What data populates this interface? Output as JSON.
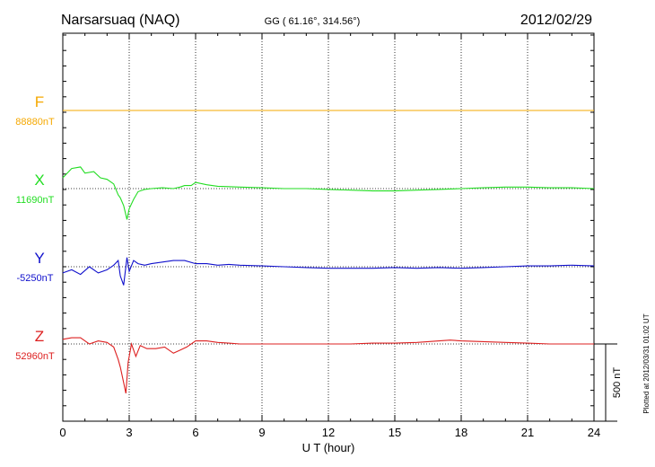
{
  "header": {
    "station": "Narsarsuaq (NAQ)",
    "coords": "GG ( 61.16°, 314.56°)",
    "date": "2012/02/29"
  },
  "footer": {
    "plotted": "Plotted at 2012/03/31 01:02 UT"
  },
  "scale_bar": {
    "label": "500 nT",
    "value_nT": 500
  },
  "chart_data": {
    "type": "line",
    "title": "Narsarsuaq (NAQ)",
    "xlabel": "U T (hour)",
    "ylabel": "",
    "xlim": [
      0,
      24
    ],
    "x_ticks": [
      0,
      3,
      6,
      9,
      12,
      15,
      18,
      21,
      24
    ],
    "x_tick_labels": [
      "0",
      "3",
      "6",
      "9",
      "12",
      "15",
      "18",
      "21",
      "24"
    ],
    "x_grid": "dotted at every 3 hours",
    "component_spacing_nT": 500,
    "series": [
      {
        "name": "F",
        "base_label": "88880nT",
        "base_nT": 88880,
        "color": "#f5a800",
        "x": [
          0,
          24
        ],
        "dev_nT": [
          0,
          0
        ]
      },
      {
        "name": "X",
        "base_label": "11690nT",
        "base_nT": 11690,
        "color": "#22dd22",
        "x": [
          0,
          0.4,
          0.8,
          1.0,
          1.4,
          1.7,
          2.0,
          2.3,
          2.5,
          2.6,
          2.75,
          2.9,
          3.0,
          3.2,
          3.4,
          3.7,
          4.0,
          4.5,
          5.0,
          5.3,
          5.5,
          5.8,
          6.0,
          6.5,
          7.0,
          8.0,
          9.0,
          10.0,
          11.0,
          12.0,
          13.0,
          14.0,
          15.0,
          16.0,
          17.0,
          18.0,
          19.0,
          20.0,
          21.0,
          22.0,
          23.0,
          24.0
        ],
        "dev_nT": [
          70,
          130,
          140,
          100,
          110,
          70,
          60,
          30,
          -40,
          -60,
          -110,
          -200,
          -130,
          -70,
          -20,
          -5,
          0,
          5,
          0,
          10,
          20,
          20,
          40,
          25,
          15,
          10,
          5,
          0,
          0,
          -5,
          -10,
          -15,
          -15,
          -10,
          -5,
          0,
          5,
          10,
          10,
          5,
          5,
          0
        ]
      },
      {
        "name": "Y",
        "base_label": "-5250nT",
        "base_nT": -5250,
        "color": "#1010cc",
        "x": [
          0,
          0.4,
          0.8,
          1.2,
          1.6,
          2.0,
          2.3,
          2.5,
          2.6,
          2.75,
          2.9,
          3.0,
          3.2,
          3.4,
          3.7,
          4.0,
          4.5,
          5.0,
          5.5,
          6.0,
          6.5,
          7.0,
          7.5,
          8.0,
          9.0,
          10.0,
          11.0,
          12.0,
          13.0,
          14.0,
          15.0,
          16.0,
          17.0,
          18.0,
          19.0,
          20.0,
          21.0,
          22.0,
          23.0,
          24.0
        ],
        "dev_nT": [
          -40,
          -20,
          -50,
          0,
          -40,
          -20,
          10,
          40,
          -60,
          -120,
          60,
          -30,
          40,
          20,
          10,
          20,
          30,
          40,
          40,
          20,
          20,
          10,
          15,
          10,
          5,
          0,
          -5,
          -10,
          -10,
          -10,
          -5,
          -10,
          -5,
          -10,
          -5,
          0,
          5,
          5,
          10,
          5
        ]
      },
      {
        "name": "Z",
        "base_label": "52960nT",
        "base_nT": 52960,
        "color": "#dd2020",
        "x": [
          0,
          0.4,
          0.8,
          1.2,
          1.6,
          2.0,
          2.3,
          2.5,
          2.6,
          2.75,
          2.85,
          2.95,
          3.1,
          3.3,
          3.5,
          3.8,
          4.2,
          4.6,
          5.0,
          5.3,
          5.6,
          6.0,
          6.5,
          7.0,
          7.5,
          8.0,
          9.0,
          10.0,
          11.0,
          12.0,
          13.0,
          14.0,
          15.0,
          16.0,
          17.0,
          17.5,
          18.0,
          19.0,
          20.0,
          21.0,
          22.0,
          23.0,
          24.0
        ],
        "dev_nT": [
          30,
          40,
          40,
          0,
          20,
          10,
          -20,
          -100,
          -150,
          -250,
          -320,
          -120,
          0,
          -80,
          -10,
          -30,
          -30,
          -20,
          -60,
          -40,
          -20,
          20,
          20,
          10,
          5,
          0,
          0,
          0,
          0,
          0,
          0,
          5,
          5,
          10,
          20,
          25,
          20,
          15,
          10,
          5,
          0,
          0,
          0
        ]
      }
    ]
  }
}
